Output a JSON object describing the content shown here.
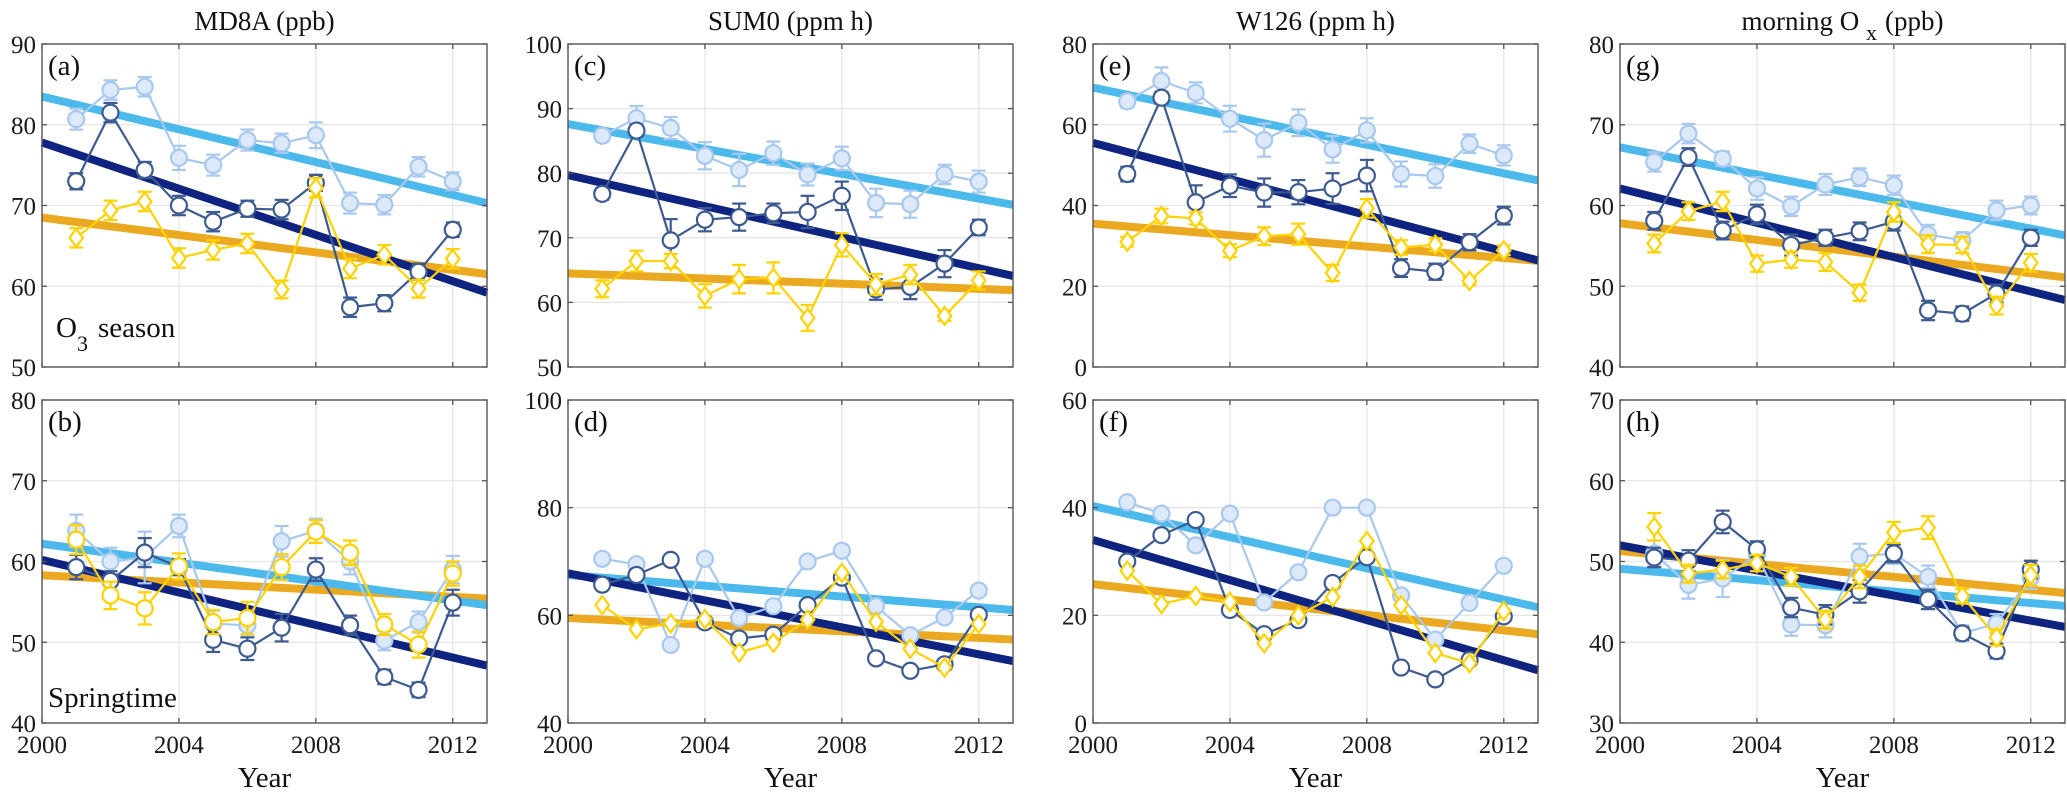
{
  "chart_data": {
    "type": "line",
    "layout": "2 rows x 4 columns of panels",
    "x": [
      2001,
      2002,
      2003,
      2004,
      2005,
      2006,
      2007,
      2008,
      2009,
      2010,
      2011,
      2012
    ],
    "xlim": [
      2000,
      2013
    ],
    "xticks": [
      2000,
      2004,
      2008,
      2012
    ],
    "xlabel": "Year",
    "grid": true,
    "legend": "none",
    "colors": {
      "light_series_line": "#a9c8ee",
      "light_series_fill": "#dce9f8",
      "dark_series_line": "#3d5a91",
      "yellow_series_line": "#ffd200",
      "light_trend": "#4cb9ec",
      "dark_trend": "#0f2381",
      "orange_trend": "#eaa920",
      "grid": "#e6e6e6",
      "axis": "#555555"
    },
    "row_labels": [
      "O3 season",
      "Springtime"
    ],
    "columns": [
      {
        "title_main": "MD8A (ppb)",
        "title_sub": ""
      },
      {
        "title_main": "SUM0 (ppm h)",
        "title_sub": ""
      },
      {
        "title_main": "W126 (ppm h)",
        "title_sub": ""
      },
      {
        "title_main": "morning O",
        "title_sub": "x",
        "title_tail": "(ppb)"
      }
    ],
    "panels": [
      {
        "id": "a",
        "letter": "(a)",
        "row": 0,
        "col": 0,
        "annotation": "O3 season",
        "ylim": [
          50,
          90
        ],
        "yticks": [
          50,
          60,
          70,
          80,
          90
        ],
        "errorbars": true,
        "series": [
          {
            "name": "light",
            "marker": "filled-circle",
            "values": [
              80.7,
              84.3,
              84.7,
              75.9,
              75.0,
              78.1,
              77.7,
              78.7,
              70.3,
              70.1,
              74.8,
              73.0
            ],
            "err": [
              1.3,
              1.2,
              1.2,
              1.5,
              1.3,
              1.3,
              1.2,
              1.6,
              1.3,
              1.2,
              1.2,
              1.1
            ]
          },
          {
            "name": "dark",
            "marker": "open-circle",
            "values": [
              73.0,
              81.5,
              74.4,
              70.0,
              68.0,
              69.6,
              69.5,
              72.8,
              57.4,
              57.9,
              61.8,
              67.0
            ],
            "err": [
              1.0,
              1.2,
              1.0,
              1.2,
              1.2,
              1.0,
              1.2,
              1.0,
              1.2,
              1.0,
              1.0,
              0.9
            ]
          },
          {
            "name": "yellow",
            "marker": "open-diamond",
            "values": [
              66.0,
              69.4,
              70.5,
              63.5,
              64.5,
              65.3,
              59.6,
              72.2,
              62.2,
              63.9,
              59.7,
              63.4
            ],
            "err": [
              1.2,
              1.2,
              1.2,
              1.2,
              1.2,
              1.2,
              1.1,
              1.2,
              1.2,
              1.2,
              1.1,
              1.2
            ]
          }
        ],
        "trends": {
          "light": [
            83.5,
            70.3
          ],
          "dark": [
            77.8,
            59.2
          ],
          "orange": [
            68.5,
            61.5
          ]
        }
      },
      {
        "id": "b",
        "letter": "(b)",
        "row": 1,
        "col": 0,
        "annotation": "Springtime",
        "ylim": [
          40,
          80
        ],
        "yticks": [
          40,
          50,
          60,
          70,
          80
        ],
        "errorbars": true,
        "series": [
          {
            "name": "light",
            "marker": "filled-circle",
            "values": [
              63.8,
              60.0,
              60.5,
              64.4,
              52.3,
              52.1,
              62.5,
              63.8,
              60.0,
              50.2,
              52.5,
              59.0
            ],
            "err": [
              2.0,
              1.7,
              3.2,
              1.4,
              1.6,
              1.4,
              1.9,
              1.5,
              1.6,
              1.2,
              1.3,
              1.7
            ]
          },
          {
            "name": "dark",
            "marker": "open-circle",
            "values": [
              59.3,
              57.6,
              61.1,
              59.3,
              50.3,
              49.2,
              51.8,
              59.0,
              52.1,
              45.7,
              44.1,
              54.9
            ],
            "err": [
              1.5,
              1.2,
              1.8,
              1.0,
              1.5,
              1.4,
              1.7,
              1.4,
              1.2,
              0.9,
              0.9,
              1.6
            ]
          },
          {
            "name": "yellow",
            "marker": "open-circle",
            "values": [
              62.7,
              55.8,
              54.2,
              59.4,
              52.5,
              53.0,
              59.3,
              63.7,
              61.1,
              52.2,
              49.7,
              58.5
            ],
            "err": [
              1.8,
              1.7,
              2.0,
              1.6,
              1.5,
              2.0,
              1.6,
              1.4,
              1.5,
              1.3,
              1.6,
              1.5
            ]
          }
        ],
        "trends": {
          "light": [
            62.2,
            54.6
          ],
          "dark": [
            60.2,
            47.1
          ],
          "orange": [
            58.3,
            55.4
          ]
        }
      },
      {
        "id": "c",
        "letter": "(c)",
        "row": 0,
        "col": 1,
        "annotation": "",
        "ylim": [
          50,
          100
        ],
        "yticks": [
          50,
          60,
          70,
          80,
          90,
          100
        ],
        "errorbars": true,
        "series": [
          {
            "name": "light",
            "marker": "filled-circle",
            "values": [
              85.8,
              88.5,
              87.0,
              82.7,
              80.5,
              83.1,
              79.8,
              82.3,
              75.4,
              75.2,
              79.8,
              78.7
            ],
            "err": [
              0.9,
              1.9,
              1.7,
              2.1,
              2.5,
              1.8,
              1.7,
              1.8,
              2.2,
              2.1,
              1.5,
              1.7
            ]
          },
          {
            "name": "dark",
            "marker": "open-circle",
            "values": [
              76.8,
              86.6,
              69.6,
              72.8,
              73.2,
              73.8,
              74.0,
              76.5,
              62.0,
              62.4,
              66.0,
              71.6
            ],
            "err": [
              0.9,
              0.9,
              3.3,
              1.8,
              2.1,
              1.5,
              2.5,
              2.2,
              1.6,
              1.9,
              2.1,
              1.2
            ]
          },
          {
            "name": "yellow",
            "marker": "open-diamond",
            "values": [
              62.1,
              66.4,
              66.4,
              61.0,
              63.6,
              63.8,
              57.6,
              68.9,
              62.8,
              64.3,
              57.9,
              63.4
            ],
            "err": [
              1.3,
              1.6,
              1.1,
              1.8,
              2.2,
              2.4,
              2.0,
              1.8,
              1.6,
              1.5,
              0.8,
              1.4
            ]
          }
        ],
        "trends": {
          "light": [
            87.6,
            75.1
          ],
          "dark": [
            79.7,
            64.1
          ],
          "orange": [
            64.5,
            61.9
          ]
        }
      },
      {
        "id": "d",
        "letter": "(d)",
        "row": 1,
        "col": 1,
        "annotation": "",
        "ylim": [
          40,
          100
        ],
        "yticks": [
          40,
          60,
          80,
          100
        ],
        "errorbars": false,
        "series": [
          {
            "name": "light",
            "marker": "filled-circle",
            "values": [
              70.5,
              69.5,
              54.5,
              70.5,
              59.5,
              61.7,
              70.0,
              72.0,
              61.7,
              56.3,
              59.6,
              64.6
            ]
          },
          {
            "name": "dark",
            "marker": "open-circle",
            "values": [
              65.7,
              67.5,
              70.3,
              58.7,
              55.7,
              56.4,
              61.9,
              67.0,
              52.0,
              49.7,
              50.9,
              60.1
            ]
          },
          {
            "name": "yellow",
            "marker": "open-diamond",
            "values": [
              61.9,
              57.4,
              58.5,
              59.3,
              53.1,
              54.9,
              59.2,
              67.9,
              58.8,
              53.8,
              50.3,
              58.4
            ]
          }
        ],
        "trends": {
          "light": [
            67.5,
            61.0
          ],
          "dark": [
            67.8,
            51.5
          ],
          "orange": [
            59.5,
            55.5
          ]
        }
      },
      {
        "id": "e",
        "letter": "(e)",
        "row": 0,
        "col": 2,
        "annotation": "",
        "ylim": [
          0,
          80
        ],
        "yticks": [
          0,
          20,
          40,
          60,
          80
        ],
        "errorbars": true,
        "series": [
          {
            "name": "light",
            "marker": "filled-circle",
            "values": [
              65.8,
              70.8,
              67.9,
              61.5,
              56.2,
              60.5,
              53.9,
              58.6,
              47.8,
              47.3,
              55.3,
              52.4
            ],
            "err": [
              1.5,
              3.4,
              2.6,
              3.2,
              4.1,
              3.3,
              3.3,
              3.0,
              3.1,
              2.9,
              2.3,
              2.5
            ]
          },
          {
            "name": "dark",
            "marker": "open-circle",
            "values": [
              47.8,
              66.7,
              40.8,
              44.9,
              43.2,
              43.3,
              44.2,
              47.4,
              24.5,
              23.6,
              30.9,
              37.5
            ],
            "err": [
              1.8,
              1.5,
              4.2,
              2.8,
              3.5,
              3.0,
              3.8,
              3.9,
              2.2,
              2.0,
              2.0,
              2.2
            ]
          },
          {
            "name": "yellow",
            "marker": "open-diamond",
            "values": [
              31.0,
              37.4,
              36.8,
              28.8,
              32.4,
              32.9,
              23.3,
              39.3,
              29.6,
              30.3,
              21.3,
              28.9
            ],
            "err": [
              1.2,
              1.8,
              1.5,
              1.6,
              2.2,
              2.6,
              2.0,
              2.3,
              1.8,
              1.6,
              1.0,
              1.2
            ]
          }
        ],
        "trends": {
          "light": [
            69.2,
            46.2
          ],
          "dark": [
            55.5,
            26.4
          ],
          "orange": [
            35.5,
            26.3
          ]
        }
      },
      {
        "id": "f",
        "letter": "(f)",
        "row": 1,
        "col": 2,
        "annotation": "",
        "ylim": [
          0,
          60
        ],
        "yticks": [
          0,
          20,
          40,
          60
        ],
        "errorbars": false,
        "series": [
          {
            "name": "light",
            "marker": "filled-circle",
            "values": [
              41.0,
              38.9,
              33.0,
              38.9,
              22.4,
              28.0,
              40.0,
              40.0,
              23.7,
              15.5,
              22.3,
              29.2
            ]
          },
          {
            "name": "dark",
            "marker": "open-circle",
            "values": [
              30.0,
              34.9,
              37.7,
              21.0,
              16.5,
              19.1,
              26.0,
              30.8,
              10.3,
              8.1,
              11.7,
              19.8
            ]
          },
          {
            "name": "yellow",
            "marker": "open-diamond",
            "values": [
              28.3,
              22.1,
              23.6,
              22.5,
              14.8,
              20.0,
              23.4,
              33.8,
              21.9,
              13.0,
              11.1,
              20.8
            ]
          }
        ],
        "trends": {
          "light": [
            40.3,
            21.5
          ],
          "dark": [
            34.0,
            9.8
          ],
          "orange": [
            25.8,
            16.5
          ]
        }
      },
      {
        "id": "g",
        "letter": "(g)",
        "row": 0,
        "col": 3,
        "annotation": "",
        "ylim": [
          40,
          80
        ],
        "yticks": [
          40,
          50,
          60,
          70,
          80
        ],
        "errorbars": true,
        "series": [
          {
            "name": "light",
            "marker": "filled-circle",
            "values": [
              65.4,
              68.9,
              65.8,
              62.1,
              59.9,
              62.6,
              63.5,
              62.5,
              56.4,
              55.7,
              59.4,
              60.0
            ],
            "err": [
              1.2,
              1.2,
              0.9,
              1.4,
              1.2,
              1.3,
              1.1,
              1.2,
              1.2,
              1.0,
              1.2,
              1.1
            ]
          },
          {
            "name": "dark",
            "marker": "open-circle",
            "values": [
              58.1,
              66.0,
              56.9,
              58.9,
              55.1,
              56.0,
              56.8,
              58.0,
              47.0,
              46.6,
              49.1,
              56.0
            ],
            "err": [
              1.1,
              1.1,
              1.1,
              1.2,
              1.3,
              1.0,
              1.1,
              1.1,
              1.2,
              0.9,
              1.1,
              1.0
            ]
          },
          {
            "name": "yellow",
            "marker": "open-diamond",
            "values": [
              55.3,
              59.3,
              60.5,
              52.8,
              53.3,
              53.0,
              49.2,
              59.2,
              55.2,
              55.1,
              47.6,
              52.9
            ],
            "err": [
              1.1,
              1.1,
              1.2,
              1.0,
              1.0,
              1.1,
              1.0,
              1.2,
              1.1,
              1.0,
              1.1,
              1.1
            ]
          }
        ],
        "trends": {
          "light": [
            67.2,
            56.3
          ],
          "dark": [
            62.1,
            48.3
          ],
          "orange": [
            57.8,
            51.1
          ]
        }
      },
      {
        "id": "h",
        "letter": "(h)",
        "row": 1,
        "col": 3,
        "annotation": "",
        "ylim": [
          30,
          70
        ],
        "yticks": [
          30,
          40,
          50,
          60,
          70
        ],
        "errorbars": true,
        "series": [
          {
            "name": "light",
            "marker": "filled-circle",
            "values": [
              51.0,
              47.1,
              47.9,
              50.8,
              42.2,
              42.1,
              50.6,
              51.0,
              48.1,
              41.1,
              42.3,
              48.0
            ],
            "err": [
              1.6,
              1.7,
              2.3,
              1.3,
              1.4,
              1.5,
              1.6,
              1.3,
              1.4,
              1.0,
              1.2,
              1.4
            ]
          },
          {
            "name": "dark",
            "marker": "open-circle",
            "values": [
              50.5,
              50.1,
              54.9,
              51.5,
              44.3,
              43.4,
              46.3,
              51.0,
              45.3,
              41.1,
              38.9,
              49.0
            ],
            "err": [
              1.2,
              1.3,
              1.4,
              1.0,
              1.2,
              1.2,
              1.4,
              1.1,
              1.2,
              0.8,
              0.9,
              1.1
            ]
          },
          {
            "name": "yellow",
            "marker": "open-diamond",
            "values": [
              54.3,
              48.5,
              49.0,
              49.8,
              48.1,
              42.8,
              48.1,
              53.6,
              54.2,
              45.7,
              40.6,
              48.3
            ],
            "err": [
              1.7,
              1.1,
              1.1,
              1.0,
              1.1,
              1.1,
              1.4,
              1.3,
              1.4,
              0.9,
              1.0,
              1.3
            ]
          }
        ],
        "trends": {
          "light": [
            49.1,
            44.5
          ],
          "dark": [
            52.0,
            41.9
          ],
          "orange": [
            51.3,
            46.1
          ]
        }
      }
    ]
  }
}
